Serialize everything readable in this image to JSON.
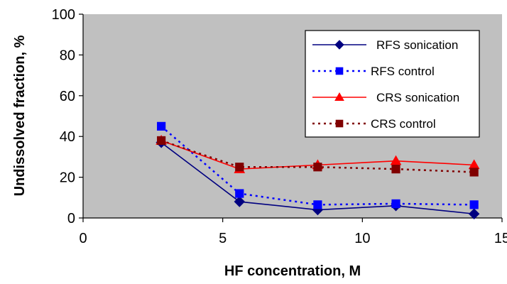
{
  "chart_data": {
    "type": "line",
    "title": "",
    "xlabel": "HF concentration, M",
    "ylabel": "Undissolved fraction, %",
    "xlim": [
      0,
      15
    ],
    "ylim": [
      0,
      100
    ],
    "xticks": [
      "0",
      "5",
      "10",
      "15"
    ],
    "yticks": [
      "0",
      "20",
      "40",
      "60",
      "80",
      "100"
    ],
    "grid": false,
    "legend_position": "top-right",
    "plot_background": "#c0c0c0",
    "series": [
      {
        "name": "RFS sonication",
        "x": [
          2.8,
          5.6,
          8.4,
          11.2,
          14.0
        ],
        "y": [
          37,
          8,
          4,
          6,
          2
        ],
        "color": "#000080",
        "line": "solid",
        "marker": "diamond"
      },
      {
        "name": "RFS control",
        "x": [
          2.8,
          5.6,
          8.4,
          11.2,
          14.0
        ],
        "y": [
          45,
          12,
          6.5,
          7,
          6.5
        ],
        "color": "#0000ff",
        "line": "dotted",
        "marker": "square"
      },
      {
        "name": "CRS sonication",
        "x": [
          2.8,
          5.6,
          8.4,
          11.2,
          14.0
        ],
        "y": [
          38,
          24,
          26,
          28,
          26
        ],
        "color": "#ff0000",
        "line": "solid",
        "marker": "triangle"
      },
      {
        "name": "CRS control",
        "x": [
          2.8,
          5.6,
          8.4,
          11.2,
          14.0
        ],
        "y": [
          38,
          25,
          25,
          24,
          22.5
        ],
        "color": "#800000",
        "line": "dotted",
        "marker": "square"
      }
    ]
  }
}
